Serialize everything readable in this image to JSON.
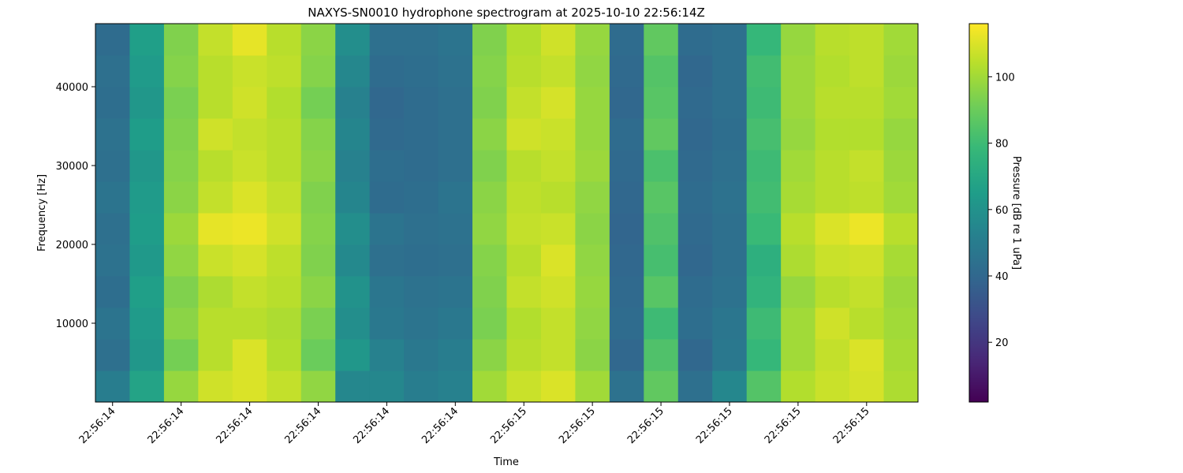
{
  "chart_data": {
    "type": "heatmap",
    "title": "NAXYS-SN0010 hydrophone spectrogram at 2025-10-10 22:56:14Z",
    "x_label": "Time",
    "y_label": "Frequency [Hz]",
    "colorbar_label": "Pressure [dB re 1 uPa]",
    "colormap": "viridis",
    "xlim": [
      -0.25,
      11.75
    ],
    "xticks": [
      {
        "value": 0,
        "label": "22:56:14"
      },
      {
        "value": 1,
        "label": "22:56:14"
      },
      {
        "value": 2,
        "label": "22:56:14"
      },
      {
        "value": 3,
        "label": "22:56:14"
      },
      {
        "value": 4,
        "label": "22:56:14"
      },
      {
        "value": 5,
        "label": "22:56:14"
      },
      {
        "value": 6,
        "label": "22:56:15"
      },
      {
        "value": 7,
        "label": "22:56:15"
      },
      {
        "value": 8,
        "label": "22:56:15"
      },
      {
        "value": 9,
        "label": "22:56:15"
      },
      {
        "value": 10,
        "label": "22:56:15"
      },
      {
        "value": 11,
        "label": "22:56:15"
      }
    ],
    "ylim": [
      0,
      48000
    ],
    "yticks": [
      10000,
      20000,
      30000,
      40000
    ],
    "clim": [
      2,
      116
    ],
    "cticks": [
      20,
      40,
      60,
      80,
      100
    ],
    "x": [
      0,
      0.5,
      1,
      1.5,
      2,
      2.5,
      3,
      3.5,
      4,
      4.5,
      5,
      5.5,
      6,
      6.5,
      7,
      7.5,
      8,
      8.5,
      9,
      9.5,
      10,
      10.5,
      11,
      11.5
    ],
    "y": [
      2000,
      6000,
      10000,
      14000,
      18000,
      22000,
      26000,
      30000,
      34000,
      38000,
      42000,
      46000
    ],
    "z": [
      [
        50,
        68,
        98,
        108,
        110,
        106,
        97,
        55,
        55,
        50,
        52,
        100,
        107,
        110,
        100,
        45,
        88,
        44,
        55,
        85,
        103,
        107,
        109,
        102
      ],
      [
        44,
        62,
        92,
        104,
        110,
        103,
        90,
        62,
        52,
        48,
        50,
        96,
        104,
        106,
        96,
        40,
        84,
        40,
        48,
        78,
        100,
        106,
        110,
        101
      ],
      [
        46,
        64,
        96,
        104,
        104,
        102,
        93,
        58,
        48,
        46,
        48,
        93,
        103,
        106,
        97,
        42,
        80,
        43,
        47,
        80,
        100,
        108,
        104,
        100
      ],
      [
        43,
        66,
        94,
        102,
        106,
        104,
        96,
        60,
        47,
        45,
        46,
        94,
        106,
        108,
        98,
        41,
        86,
        42,
        45,
        76,
        98,
        104,
        106,
        99
      ],
      [
        45,
        63,
        97,
        107,
        109,
        105,
        94,
        56,
        44,
        43,
        44,
        95,
        104,
        110,
        97,
        40,
        82,
        40,
        44,
        74,
        102,
        107,
        108,
        101
      ],
      [
        44,
        65,
        99,
        112,
        113,
        108,
        95,
        58,
        46,
        44,
        45,
        97,
        106,
        107,
        96,
        39,
        84,
        41,
        44,
        79,
        104,
        110,
        113,
        104
      ],
      [
        46,
        64,
        96,
        106,
        110,
        106,
        94,
        54,
        42,
        43,
        46,
        96,
        105,
        104,
        97,
        40,
        86,
        42,
        45,
        81,
        101,
        104,
        105,
        100
      ],
      [
        44,
        62,
        95,
        104,
        107,
        104,
        96,
        52,
        43,
        42,
        44,
        94,
        104,
        106,
        99,
        41,
        83,
        41,
        44,
        80,
        100,
        104,
        106,
        99
      ],
      [
        45,
        65,
        94,
        108,
        106,
        104,
        95,
        54,
        41,
        42,
        44,
        96,
        108,
        107,
        98,
        42,
        88,
        40,
        43,
        82,
        98,
        103,
        103,
        98
      ],
      [
        43,
        62,
        93,
        104,
        108,
        103,
        92,
        52,
        40,
        42,
        44,
        94,
        106,
        109,
        98,
        40,
        86,
        41,
        44,
        80,
        99,
        104,
        104,
        100
      ],
      [
        44,
        64,
        95,
        104,
        107,
        105,
        95,
        55,
        42,
        43,
        45,
        95,
        104,
        106,
        97,
        41,
        85,
        40,
        44,
        81,
        99,
        103,
        105,
        99
      ],
      [
        42,
        66,
        94,
        106,
        112,
        104,
        96,
        58,
        44,
        44,
        46,
        94,
        103,
        108,
        98,
        42,
        88,
        42,
        44,
        78,
        98,
        104,
        105,
        100
      ]
    ]
  }
}
